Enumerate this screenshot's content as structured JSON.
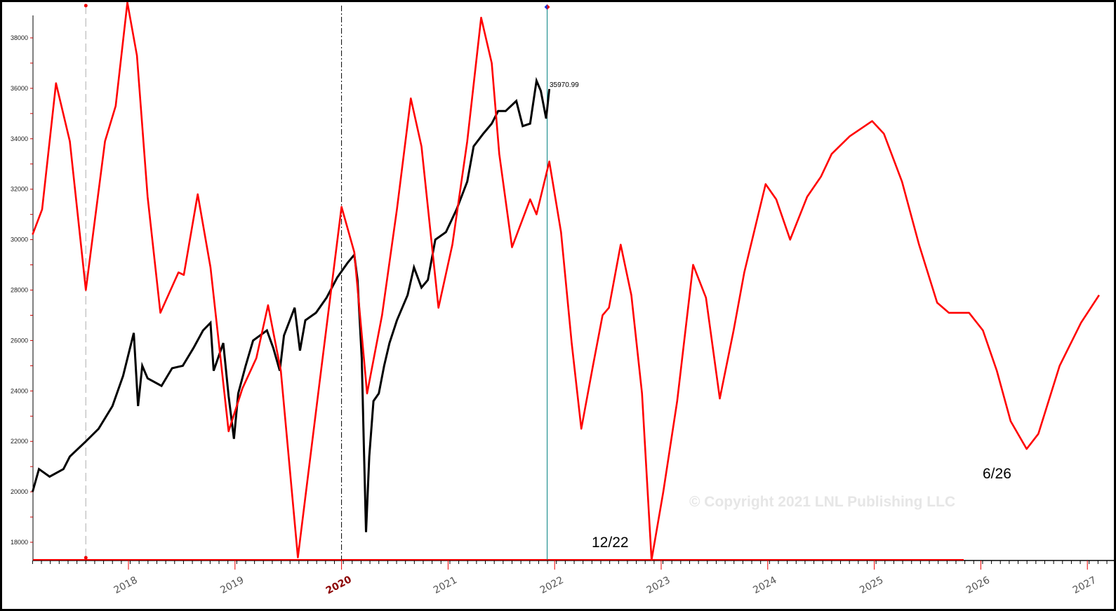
{
  "chart_data": {
    "type": "line",
    "title": "",
    "xlabel": "",
    "ylabel": "",
    "xlim": [
      2017.1,
      2027.11
    ],
    "ylim": [
      17300,
      39500
    ],
    "grid": false,
    "y_ticks": [
      18000,
      20000,
      22000,
      24000,
      26000,
      28000,
      30000,
      32000,
      34000,
      36000,
      38000
    ],
    "x_ticks": [
      "2018",
      "2019",
      "2020",
      "2021",
      "2022",
      "2023",
      "2024",
      "2025",
      "2026",
      "2027"
    ],
    "x_tick_highlight": "2020",
    "colors": {
      "cycle": "#ff0000",
      "price": "#000000",
      "cursor": "#008080",
      "highlight_year": "#8b0000"
    },
    "series": [
      {
        "role": "price",
        "points": [
          [
            2017.1,
            20000
          ],
          [
            2017.16,
            20900
          ],
          [
            2017.26,
            20600
          ],
          [
            2017.39,
            20900
          ],
          [
            2017.45,
            21400
          ],
          [
            2017.6,
            22000
          ],
          [
            2017.72,
            22500
          ],
          [
            2017.85,
            23400
          ],
          [
            2017.95,
            24600
          ],
          [
            2018.05,
            26300
          ],
          [
            2018.09,
            23400
          ],
          [
            2018.13,
            25000
          ],
          [
            2018.18,
            24500
          ],
          [
            2018.31,
            24200
          ],
          [
            2018.41,
            24900
          ],
          [
            2018.51,
            25000
          ],
          [
            2018.61,
            25700
          ],
          [
            2018.7,
            26400
          ],
          [
            2018.77,
            26700
          ],
          [
            2018.8,
            24800
          ],
          [
            2018.89,
            25900
          ],
          [
            2018.94,
            23800
          ],
          [
            2018.99,
            22100
          ],
          [
            2019.03,
            23900
          ],
          [
            2019.1,
            25000
          ],
          [
            2019.17,
            26000
          ],
          [
            2019.3,
            26400
          ],
          [
            2019.36,
            25700
          ],
          [
            2019.42,
            24800
          ],
          [
            2019.46,
            26200
          ],
          [
            2019.56,
            27300
          ],
          [
            2019.61,
            25600
          ],
          [
            2019.66,
            26800
          ],
          [
            2019.76,
            27100
          ],
          [
            2019.86,
            27700
          ],
          [
            2019.96,
            28500
          ],
          [
            2020.06,
            29100
          ],
          [
            2020.12,
            29400
          ],
          [
            2020.15,
            28400
          ],
          [
            2020.19,
            25300
          ],
          [
            2020.21,
            21700
          ],
          [
            2020.23,
            18400
          ],
          [
            2020.26,
            21400
          ],
          [
            2020.3,
            23600
          ],
          [
            2020.35,
            23900
          ],
          [
            2020.4,
            25000
          ],
          [
            2020.45,
            25900
          ],
          [
            2020.52,
            26800
          ],
          [
            2020.62,
            27800
          ],
          [
            2020.68,
            28900
          ],
          [
            2020.75,
            28100
          ],
          [
            2020.81,
            28400
          ],
          [
            2020.88,
            30000
          ],
          [
            2020.98,
            30300
          ],
          [
            2021.08,
            31200
          ],
          [
            2021.18,
            32300
          ],
          [
            2021.24,
            33700
          ],
          [
            2021.33,
            34200
          ],
          [
            2021.41,
            34600
          ],
          [
            2021.47,
            35100
          ],
          [
            2021.54,
            35100
          ],
          [
            2021.64,
            35500
          ],
          [
            2021.7,
            34500
          ],
          [
            2021.77,
            34600
          ],
          [
            2021.83,
            36300
          ],
          [
            2021.87,
            35900
          ],
          [
            2021.92,
            34800
          ],
          [
            2021.95,
            35970.99
          ]
        ]
      },
      {
        "role": "cycle",
        "points": [
          [
            2017.1,
            30200
          ],
          [
            2017.19,
            31200
          ],
          [
            2017.32,
            36200
          ],
          [
            2017.45,
            33900
          ],
          [
            2017.6,
            28000
          ],
          [
            2017.78,
            33900
          ],
          [
            2017.88,
            35300
          ],
          [
            2017.99,
            39400
          ],
          [
            2018.08,
            37300
          ],
          [
            2018.18,
            31700
          ],
          [
            2018.3,
            27100
          ],
          [
            2018.47,
            28700
          ],
          [
            2018.52,
            28600
          ],
          [
            2018.65,
            31800
          ],
          [
            2018.77,
            28900
          ],
          [
            2018.94,
            22400
          ],
          [
            2019.07,
            24100
          ],
          [
            2019.2,
            25300
          ],
          [
            2019.31,
            27400
          ],
          [
            2019.43,
            24800
          ],
          [
            2019.59,
            17400
          ],
          [
            2019.79,
            24200
          ],
          [
            2020.0,
            31300
          ],
          [
            2020.12,
            29500
          ],
          [
            2020.24,
            23900
          ],
          [
            2020.38,
            27000
          ],
          [
            2020.52,
            31200
          ],
          [
            2020.65,
            35600
          ],
          [
            2020.75,
            33700
          ],
          [
            2020.91,
            27300
          ],
          [
            2021.04,
            29800
          ],
          [
            2021.18,
            33900
          ],
          [
            2021.31,
            38800
          ],
          [
            2021.41,
            37000
          ],
          [
            2021.48,
            33400
          ],
          [
            2021.6,
            29700
          ],
          [
            2021.77,
            31600
          ],
          [
            2021.83,
            31000
          ],
          [
            2021.95,
            33100
          ],
          [
            2022.06,
            30300
          ],
          [
            2022.16,
            25900
          ],
          [
            2022.25,
            22500
          ],
          [
            2022.36,
            25000
          ],
          [
            2022.45,
            27000
          ],
          [
            2022.51,
            27300
          ],
          [
            2022.62,
            29800
          ],
          [
            2022.72,
            27800
          ],
          [
            2022.82,
            23900
          ],
          [
            2022.91,
            17300
          ],
          [
            2023.02,
            20000
          ],
          [
            2023.15,
            23600
          ],
          [
            2023.3,
            29000
          ],
          [
            2023.42,
            27700
          ],
          [
            2023.55,
            23700
          ],
          [
            2023.68,
            26400
          ],
          [
            2023.78,
            28700
          ],
          [
            2023.98,
            32200
          ],
          [
            2024.08,
            31600
          ],
          [
            2024.21,
            30000
          ],
          [
            2024.37,
            31700
          ],
          [
            2024.5,
            32500
          ],
          [
            2024.6,
            33400
          ],
          [
            2024.77,
            34100
          ],
          [
            2024.98,
            34700
          ],
          [
            2025.09,
            34200
          ],
          [
            2025.26,
            32300
          ],
          [
            2025.42,
            29800
          ],
          [
            2025.59,
            27500
          ],
          [
            2025.7,
            27100
          ],
          [
            2025.89,
            27100
          ],
          [
            2026.02,
            26400
          ],
          [
            2026.15,
            24800
          ],
          [
            2026.28,
            22800
          ],
          [
            2026.43,
            21700
          ],
          [
            2026.54,
            22300
          ],
          [
            2026.74,
            25000
          ],
          [
            2026.94,
            26700
          ],
          [
            2027.11,
            27800
          ]
        ]
      }
    ],
    "last_value_label": "35970.99",
    "annotations": [
      {
        "text": "12/22",
        "x": 2022.92,
        "y": 18000
      },
      {
        "text": "6/26",
        "x": 2026.5,
        "y": 20700
      }
    ],
    "vertical_markers": [
      {
        "style": "dashed",
        "x": 2017.6
      },
      {
        "style": "dash-dot",
        "x": 2020.0
      },
      {
        "style": "cursor",
        "x": 2021.93
      }
    ],
    "watermark": "© Copyright 2021 LNL Publishing LLC"
  }
}
